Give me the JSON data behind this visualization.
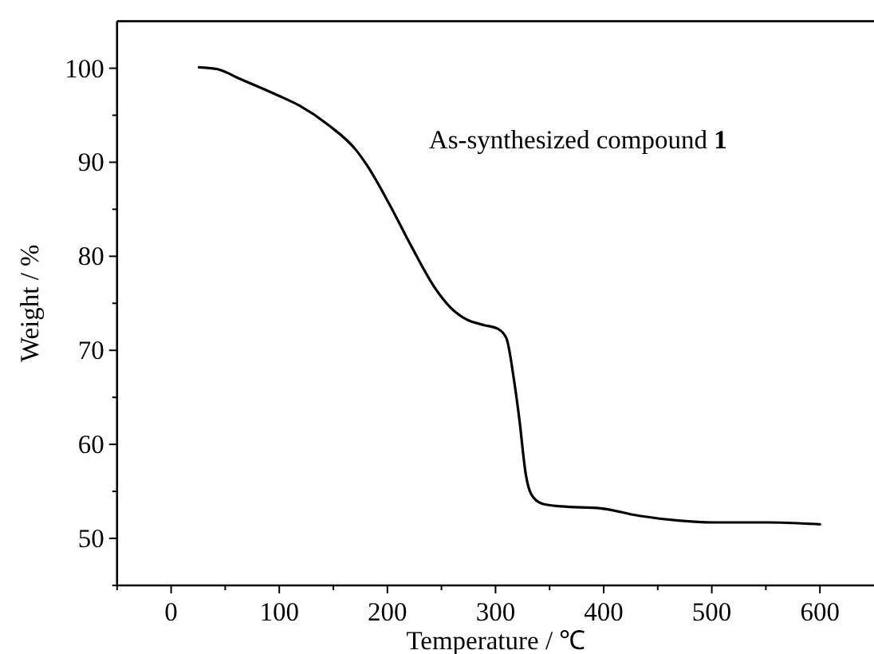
{
  "chart_data": {
    "type": "line",
    "xlabel": "Temperature / ℃",
    "ylabel": "Weight / %",
    "annotations": [
      "As-synthesized compound 1"
    ],
    "xlim": [
      -50,
      650
    ],
    "xticks": [
      {
        "value": -50,
        "label": null
      },
      0,
      {
        "value": 50,
        "label": null
      },
      100,
      {
        "value": 150,
        "label": null
      },
      200,
      {
        "value": 250,
        "label": null
      },
      300,
      {
        "value": 350,
        "label": null
      },
      400,
      {
        "value": 450,
        "label": null
      },
      500,
      {
        "value": 550,
        "label": null
      },
      600
    ],
    "ylim": [
      45,
      105
    ],
    "yticks": [
      {
        "value": 45,
        "label": null
      },
      50,
      {
        "value": 55,
        "label": null
      },
      60,
      {
        "value": 65,
        "label": null
      },
      70,
      {
        "value": 75,
        "label": null
      },
      80,
      {
        "value": 85,
        "label": null
      },
      90,
      {
        "value": 95,
        "label": null
      },
      100
    ],
    "grid": false,
    "marker": "none",
    "line_style": "solid",
    "series": [
      {
        "color": "#000000",
        "x": [
          25.7,
          43,
          63,
          99,
          119,
          145,
          171,
          181,
          202,
          222,
          243,
          258,
          273,
          289,
          302,
          310,
          317,
          322,
          328,
          333,
          343,
          361,
          397,
          433,
          469,
          500,
          551,
          600
        ],
        "values": [
          100.1,
          99.9,
          98.9,
          97.1,
          96.0,
          94.0,
          91.3,
          89.7,
          85.5,
          81.1,
          76.8,
          74.6,
          73.3,
          72.7,
          72.3,
          71.3,
          66.9,
          62.7,
          56.8,
          54.7,
          53.7,
          53.4,
          53.2,
          52.4,
          51.9,
          51.7,
          51.7,
          51.5
        ]
      }
    ]
  }
}
